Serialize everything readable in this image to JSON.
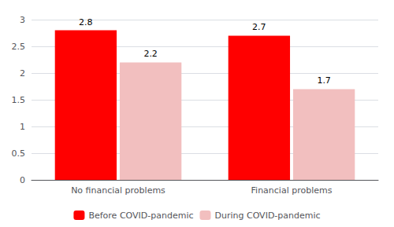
{
  "chart_data": {
    "type": "bar",
    "categories": [
      "No financial problems",
      "Financial problems"
    ],
    "series": [
      {
        "name": "Before COVID-pandemic",
        "color": "#FF0000",
        "values": [
          2.8,
          2.7
        ]
      },
      {
        "name": "During COVID-pandemic",
        "color": "#F2BFBF",
        "values": [
          2.2,
          1.7
        ]
      }
    ],
    "ylim": [
      0,
      3
    ],
    "yticks": [
      0,
      0.5,
      1,
      1.5,
      2,
      2.5,
      3
    ],
    "grid": true,
    "legend": "bottom",
    "data_labels": true
  }
}
